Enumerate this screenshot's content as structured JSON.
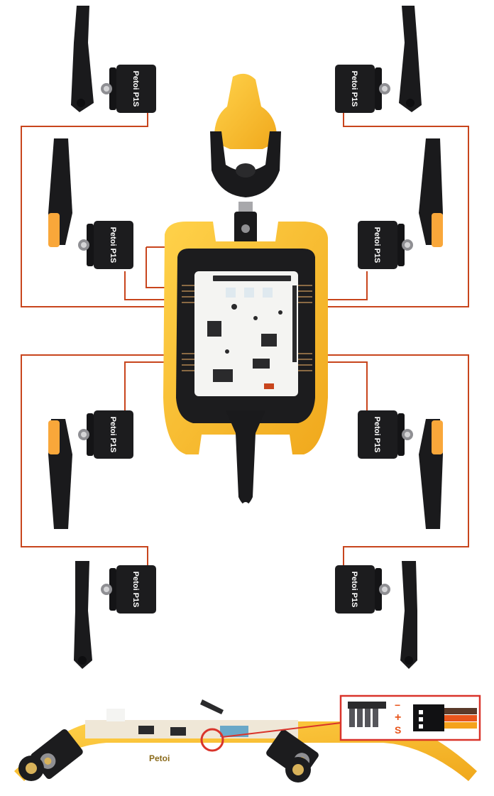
{
  "servo_label": "Petoi P1S",
  "board_brand": "Petoi",
  "pin_labels": {
    "minus": "−",
    "plus": "+",
    "signal": "S"
  },
  "colors": {
    "wire": "#c8451d",
    "frame_yellow": "#f7b928",
    "servo_black": "#1c1c1e",
    "callout_red": "#d9342b"
  }
}
